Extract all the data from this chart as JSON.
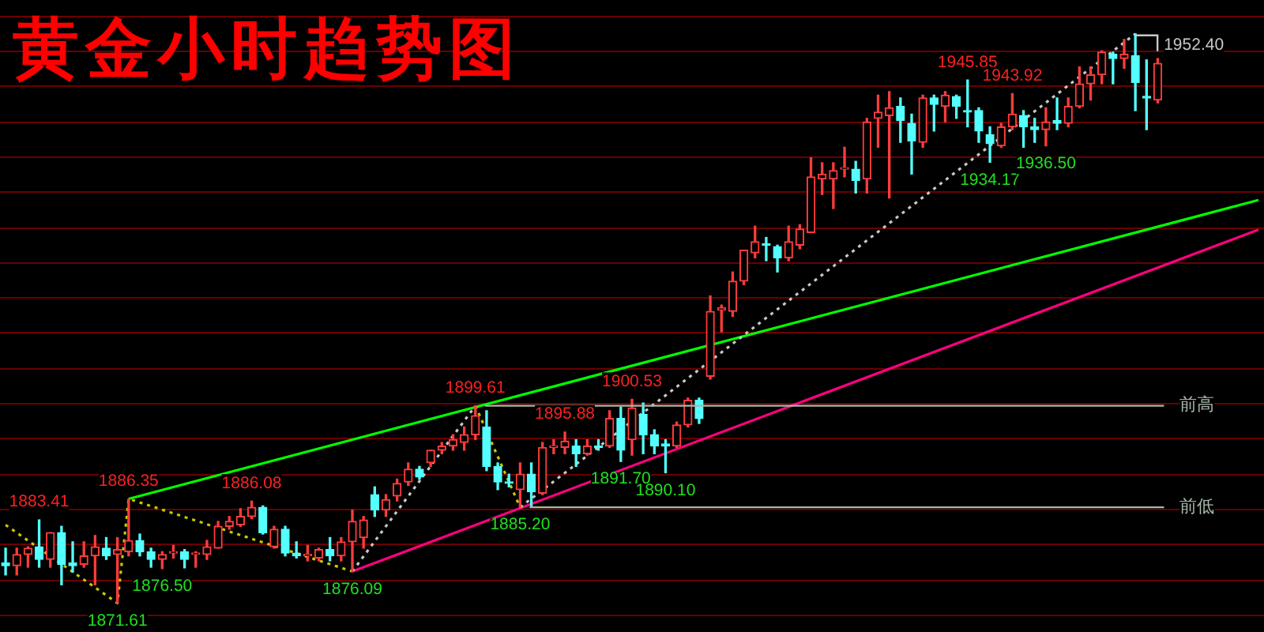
{
  "chart_data": {
    "type": "candlestick",
    "title": "黄金小时趋势图",
    "categories": [
      null,
      null,
      null,
      null,
      null,
      null,
      null,
      null,
      null,
      null,
      null,
      null,
      null,
      null,
      null,
      null,
      null,
      null,
      null,
      null,
      null,
      null,
      null,
      null,
      null,
      null,
      null,
      null,
      null,
      null,
      null,
      null,
      null,
      null,
      null,
      null,
      null,
      null,
      null,
      null,
      null,
      null,
      null,
      null,
      null,
      null,
      null,
      null,
      null,
      null,
      null,
      null,
      null,
      null,
      null,
      null,
      null,
      null,
      null,
      null,
      null,
      null,
      null,
      null,
      null,
      null,
      null,
      null,
      null,
      null,
      null,
      null,
      null,
      null,
      null,
      null,
      null,
      null,
      null,
      null,
      null,
      null,
      null,
      null,
      null,
      null,
      null,
      null,
      null,
      null,
      null,
      null,
      null,
      null,
      null,
      null,
      null,
      null,
      null,
      null,
      null,
      null,
      null,
      null,
      null,
      null,
      null,
      null,
      null,
      null,
      null,
      null,
      null
    ],
    "ohlc": [
      [
        1877.3,
        1879.4,
        1875.6,
        1876.9
      ],
      [
        1876.9,
        1879.4,
        1875.6,
        1878.5
      ],
      [
        1878.5,
        1879.6,
        1876.7,
        1879.4
      ],
      [
        1879.6,
        1883.41,
        1876.7,
        1877.8
      ],
      [
        1877.8,
        1881.6,
        1876.7,
        1881.6
      ],
      [
        1881.6,
        1882.5,
        1874.2,
        1877.1
      ],
      [
        1877.3,
        1880.3,
        1876.0,
        1876.9
      ],
      [
        1877.1,
        1880.3,
        1876.7,
        1878.3
      ],
      [
        1878.3,
        1881.2,
        1874.2,
        1879.6
      ],
      [
        1879.4,
        1880.9,
        1877.8,
        1878.3
      ],
      [
        1878.5,
        1880.9,
        1871.61,
        1879.2
      ],
      [
        1878.9,
        1886.35,
        1878.3,
        1880.5
      ],
      [
        1880.5,
        1881.4,
        1878.3,
        1878.9
      ],
      [
        1878.9,
        1879.4,
        1876.7,
        1877.8
      ],
      [
        1877.8,
        1878.9,
        1876.5,
        1878.5
      ],
      [
        1878.7,
        1879.8,
        1878.0,
        1878.9
      ],
      [
        1878.9,
        1879.2,
        1876.6,
        1877.8
      ],
      [
        1878.5,
        1878.9,
        1876.7,
        1878.7
      ],
      [
        1878.5,
        1880.5,
        1877.8,
        1879.6
      ],
      [
        1879.4,
        1883.2,
        1879.4,
        1882.5
      ],
      [
        1882.5,
        1883.9,
        1882.1,
        1883.2
      ],
      [
        1882.7,
        1885.0,
        1882.5,
        1883.9
      ],
      [
        1883.9,
        1886.08,
        1883.6,
        1885.2
      ],
      [
        1885.2,
        1885.4,
        1881.4,
        1881.6
      ],
      [
        1879.6,
        1882.5,
        1879.4,
        1882.1
      ],
      [
        1882.1,
        1882.5,
        1878.3,
        1878.7
      ],
      [
        1878.7,
        1880.3,
        1878.0,
        1878.3
      ],
      [
        1878.3,
        1879.8,
        1877.6,
        1878.5
      ],
      [
        1878.0,
        1879.4,
        1877.6,
        1879.2
      ],
      [
        1879.2,
        1880.9,
        1877.6,
        1878.3
      ],
      [
        1878.3,
        1880.9,
        1877.6,
        1880.3
      ],
      [
        1880.3,
        1884.8,
        1876.09,
        1883.2
      ],
      [
        1880.9,
        1883.9,
        1879.4,
        1883.4
      ],
      [
        1887.0,
        1888.1,
        1883.9,
        1884.8
      ],
      [
        1884.8,
        1887.0,
        1883.9,
        1886.3
      ],
      [
        1886.8,
        1889.2,
        1886.1,
        1888.6
      ],
      [
        1888.8,
        1891.5,
        1888.3,
        1890.6
      ],
      [
        1890.6,
        1891.0,
        1889.2,
        1889.5
      ],
      [
        1891.5,
        1893.3,
        1891.0,
        1893.3
      ],
      [
        1893.3,
        1894.4,
        1892.8,
        1893.9
      ],
      [
        1893.9,
        1895.5,
        1893.3,
        1894.8
      ],
      [
        1894.4,
        1896.6,
        1893.3,
        1895.5
      ],
      [
        1895.5,
        1899.61,
        1894.8,
        1898.2
      ],
      [
        1896.6,
        1898.9,
        1890.4,
        1891.0
      ],
      [
        1891.0,
        1891.5,
        1887.7,
        1888.8
      ],
      [
        1888.8,
        1889.9,
        1888.1,
        1888.6
      ],
      [
        1887.7,
        1891.5,
        1885.2,
        1889.9
      ],
      [
        1889.9,
        1891.5,
        1885.4,
        1887.4
      ],
      [
        1887.2,
        1894.4,
        1887.0,
        1893.7
      ],
      [
        1893.7,
        1894.8,
        1892.8,
        1893.9
      ],
      [
        1893.7,
        1895.88,
        1892.8,
        1894.6
      ],
      [
        1893.9,
        1894.8,
        1891.0,
        1892.8
      ],
      [
        1892.8,
        1894.8,
        1892.6,
        1893.9
      ],
      [
        1893.9,
        1894.8,
        1893.3,
        1893.7
      ],
      [
        1893.9,
        1898.9,
        1893.7,
        1897.8
      ],
      [
        1897.8,
        1899.4,
        1891.7,
        1893.3
      ],
      [
        1894.8,
        1900.53,
        1892.6,
        1899.3
      ],
      [
        1898.4,
        1900.0,
        1892.8,
        1895.5
      ],
      [
        1895.5,
        1896.2,
        1892.8,
        1893.9
      ],
      [
        1894.2,
        1894.8,
        1890.1,
        1893.9
      ],
      [
        1893.9,
        1897.3,
        1893.7,
        1896.9
      ],
      [
        1896.9,
        1900.7,
        1896.6,
        1900.4
      ],
      [
        1900.4,
        1900.7,
        1897.1,
        1897.8
      ],
      [
        1903.8,
        1915.2,
        1903.4,
        1913.0
      ],
      [
        1913.2,
        1913.9,
        1910.1,
        1913.5
      ],
      [
        1913.0,
        1918.6,
        1912.3,
        1917.3
      ],
      [
        1917.3,
        1921.7,
        1916.8,
        1921.7
      ],
      [
        1921.3,
        1925.1,
        1920.6,
        1922.9
      ],
      [
        1922.6,
        1923.5,
        1920.2,
        1922.4
      ],
      [
        1922.2,
        1922.4,
        1918.6,
        1920.6
      ],
      [
        1920.6,
        1925.1,
        1920.2,
        1922.9
      ],
      [
        1922.4,
        1925.3,
        1921.9,
        1924.7
      ],
      [
        1924.2,
        1934.8,
        1924.2,
        1932.1
      ],
      [
        1931.8,
        1934.1,
        1929.6,
        1932.5
      ],
      [
        1931.8,
        1934.1,
        1927.6,
        1933.0
      ],
      [
        1933.2,
        1936.3,
        1932.1,
        1933.4
      ],
      [
        1933.2,
        1934.3,
        1929.8,
        1931.6
      ],
      [
        1931.8,
        1940.4,
        1929.8,
        1939.9
      ],
      [
        1940.4,
        1943.7,
        1936.3,
        1941.3
      ],
      [
        1940.8,
        1944.2,
        1929.1,
        1941.9
      ],
      [
        1942.1,
        1943.3,
        1937.0,
        1940.1
      ],
      [
        1939.7,
        1941.0,
        1932.5,
        1937.2
      ],
      [
        1937.0,
        1943.7,
        1936.3,
        1943.3
      ],
      [
        1943.3,
        1943.7,
        1938.6,
        1942.4
      ],
      [
        1942.1,
        1944.2,
        1939.9,
        1943.7
      ],
      [
        1943.5,
        1943.7,
        1940.4,
        1942.1
      ],
      [
        1941.5,
        1945.85,
        1939.2,
        1941.3
      ],
      [
        1941.5,
        1941.9,
        1937.0,
        1938.6
      ],
      [
        1938.1,
        1939.2,
        1934.17,
        1936.8
      ],
      [
        1936.5,
        1939.7,
        1936.3,
        1939.2
      ],
      [
        1939.2,
        1943.92,
        1938.8,
        1941.0
      ],
      [
        1940.8,
        1941.5,
        1936.3,
        1939.2
      ],
      [
        1939.2,
        1940.4,
        1937.0,
        1938.8
      ],
      [
        1938.8,
        1941.9,
        1936.5,
        1939.9
      ],
      [
        1940.1,
        1943.3,
        1938.8,
        1939.7
      ],
      [
        1939.7,
        1943.3,
        1939.2,
        1942.1
      ],
      [
        1942.1,
        1947.7,
        1941.9,
        1945.3
      ],
      [
        1945.3,
        1947.7,
        1943.0,
        1946.6
      ],
      [
        1946.6,
        1950.0,
        1945.3,
        1949.8
      ],
      [
        1949.5,
        1949.8,
        1945.3,
        1948.9
      ],
      [
        1948.9,
        1951.6,
        1947.5,
        1949.5
      ],
      [
        1949.3,
        1952.4,
        1941.5,
        1945.5
      ],
      [
        1943.5,
        1948.7,
        1938.8,
        1943.3
      ],
      [
        1943.0,
        1948.9,
        1942.6,
        1948.2
      ],
      null,
      null,
      null,
      null,
      null,
      null,
      null,
      null,
      null
    ],
    "series": [
      {
        "type": "line",
        "color": "#c8c800",
        "line_style": "dotted",
        "values": [
          1882.7,
          null,
          null,
          null,
          null,
          null,
          null,
          null,
          null,
          null,
          1871.6,
          1886.4,
          null,
          null,
          null,
          null,
          null,
          null,
          null,
          null,
          null,
          null,
          null,
          null,
          null,
          null,
          null,
          null,
          null,
          null,
          null,
          1876.1,
          null,
          null,
          null,
          null,
          null,
          null,
          null,
          null,
          null,
          null,
          null,
          null,
          null,
          null,
          null,
          null,
          null,
          null,
          null,
          null,
          null,
          null,
          null,
          null,
          null,
          null,
          null,
          null,
          null,
          null,
          null,
          null,
          null,
          null,
          null,
          null,
          null,
          null,
          null,
          null,
          null,
          null,
          null,
          null,
          null,
          null,
          null,
          null,
          null,
          null,
          null,
          null,
          null,
          null,
          null,
          null,
          null,
          null,
          null,
          null,
          null,
          null,
          null,
          null,
          null,
          null,
          null,
          null,
          null,
          null,
          null,
          null,
          null,
          null,
          null,
          null,
          null,
          null,
          null,
          null,
          null
        ]
      },
      {
        "type": "line",
        "color": "#c8c8c8",
        "line_style": "dotted",
        "values": [
          null,
          null,
          null,
          null,
          null,
          null,
          null,
          null,
          null,
          null,
          null,
          null,
          null,
          null,
          null,
          null,
          null,
          null,
          null,
          null,
          null,
          null,
          null,
          null,
          null,
          null,
          null,
          null,
          null,
          null,
          null,
          1876.1,
          null,
          null,
          null,
          null,
          null,
          null,
          null,
          null,
          null,
          null,
          1899.6,
          null,
          null,
          null,
          null,
          null,
          null,
          null,
          null,
          null,
          null,
          null,
          null,
          null,
          null,
          null,
          null,
          null,
          null,
          null,
          null,
          null,
          null,
          null,
          null,
          null,
          null,
          null,
          null,
          null,
          null,
          null,
          null,
          null,
          null,
          null,
          null,
          null,
          null,
          null,
          null,
          null,
          null,
          null,
          null,
          null,
          null,
          null,
          null,
          null,
          null,
          null,
          null,
          null,
          null,
          null,
          null,
          null,
          null,
          null,
          null,
          null,
          null,
          null,
          null,
          null,
          null,
          null,
          null,
          null,
          null
        ]
      },
      {
        "type": "line",
        "color": "#c8c800",
        "line_style": "dotted",
        "values": [
          null,
          null,
          null,
          null,
          null,
          null,
          null,
          null,
          null,
          null,
          null,
          null,
          null,
          null,
          null,
          null,
          null,
          null,
          null,
          null,
          null,
          null,
          null,
          null,
          null,
          null,
          null,
          null,
          null,
          null,
          null,
          null,
          null,
          null,
          null,
          null,
          null,
          null,
          null,
          null,
          null,
          null,
          1899.6,
          null,
          null,
          null,
          1885.2,
          null,
          null,
          null,
          null,
          null,
          null,
          null,
          null,
          null,
          null,
          null,
          null,
          null,
          null,
          null,
          null,
          null,
          null,
          null,
          null,
          null,
          null,
          null,
          null,
          null,
          null,
          null,
          null,
          null,
          null,
          null,
          null,
          null,
          null,
          null,
          null,
          null,
          null,
          null,
          null,
          null,
          null,
          null,
          null,
          null,
          null,
          null,
          null,
          null,
          null,
          null,
          null,
          null,
          null,
          null,
          null,
          null,
          null,
          null,
          null,
          null,
          null,
          null,
          null,
          null,
          null
        ]
      },
      {
        "type": "line",
        "color": "#c8c8c8",
        "line_style": "dotted",
        "values": [
          null,
          null,
          null,
          null,
          null,
          null,
          null,
          null,
          null,
          null,
          null,
          null,
          null,
          null,
          null,
          null,
          null,
          null,
          null,
          null,
          null,
          null,
          null,
          null,
          null,
          null,
          null,
          null,
          null,
          null,
          null,
          null,
          null,
          null,
          null,
          null,
          null,
          null,
          null,
          null,
          null,
          null,
          null,
          null,
          null,
          null,
          1885.2,
          null,
          null,
          null,
          null,
          null,
          null,
          null,
          null,
          null,
          null,
          null,
          null,
          null,
          null,
          null,
          null,
          null,
          null,
          null,
          null,
          null,
          null,
          null,
          null,
          null,
          null,
          null,
          null,
          null,
          null,
          null,
          null,
          null,
          null,
          null,
          null,
          null,
          null,
          null,
          null,
          null,
          null,
          null,
          null,
          null,
          null,
          null,
          null,
          null,
          null,
          null,
          null,
          null,
          null,
          1952.4,
          null,
          null,
          null,
          null,
          null,
          null,
          null,
          null,
          null,
          null,
          null
        ]
      },
      {
        "type": "line",
        "color": "#00ff00",
        "line_style": "solid",
        "values": [
          null,
          null,
          null,
          null,
          null,
          null,
          null,
          null,
          null,
          null,
          null,
          1886.4,
          null,
          null,
          null,
          null,
          null,
          null,
          null,
          null,
          null,
          null,
          null,
          null,
          null,
          null,
          null,
          null,
          null,
          null,
          null,
          null,
          null,
          null,
          null,
          null,
          null,
          null,
          null,
          null,
          null,
          null,
          null,
          null,
          null,
          null,
          null,
          null,
          null,
          null,
          null,
          null,
          null,
          null,
          null,
          null,
          null,
          null,
          null,
          null,
          null,
          null,
          null,
          null,
          null,
          null,
          null,
          null,
          null,
          null,
          null,
          null,
          null,
          null,
          null,
          null,
          null,
          null,
          null,
          null,
          null,
          null,
          null,
          null,
          null,
          null,
          null,
          null,
          null,
          null,
          null,
          null,
          null,
          null,
          null,
          null,
          null,
          null,
          null,
          null,
          null,
          null,
          null,
          null,
          null,
          null,
          null,
          null,
          null,
          null,
          null,
          null,
          1928.8
        ]
      },
      {
        "type": "line",
        "color": "#ff0080",
        "line_style": "solid",
        "values": [
          null,
          null,
          null,
          null,
          null,
          null,
          null,
          null,
          null,
          null,
          null,
          null,
          null,
          null,
          null,
          null,
          null,
          null,
          null,
          null,
          null,
          null,
          null,
          null,
          null,
          null,
          null,
          null,
          null,
          null,
          null,
          1876.1,
          null,
          null,
          null,
          null,
          null,
          null,
          null,
          null,
          null,
          null,
          null,
          null,
          null,
          null,
          null,
          null,
          null,
          null,
          null,
          null,
          null,
          null,
          null,
          null,
          null,
          null,
          null,
          null,
          null,
          null,
          null,
          null,
          null,
          null,
          null,
          null,
          null,
          null,
          null,
          null,
          null,
          null,
          null,
          null,
          null,
          null,
          null,
          null,
          null,
          null,
          null,
          null,
          null,
          null,
          null,
          null,
          null,
          null,
          null,
          null,
          null,
          null,
          null,
          null,
          null,
          null,
          null,
          null,
          null,
          null,
          null,
          null,
          null,
          null,
          null,
          null,
          null,
          null,
          null,
          null,
          1924.6
        ]
      }
    ],
    "ref_lines": [
      {
        "axis": "y",
        "value": 1899.61,
        "label": "前高",
        "color": "#a8b8a8"
      },
      {
        "axis": "y",
        "value": 1885.2,
        "label": "前低",
        "color": "#a8b8a8"
      }
    ],
    "annotations": [
      {
        "text": "1883.41",
        "y": 1883.41
      },
      {
        "text": "1886.35",
        "y": 1886.35
      },
      {
        "text": "1886.08",
        "y": 1886.08
      },
      {
        "text": "1876.50",
        "y": 1876.5
      },
      {
        "text": "1871.61",
        "y": 1871.61
      },
      {
        "text": "1876.09",
        "y": 1876.09
      },
      {
        "text": "1899.61",
        "y": 1899.61
      },
      {
        "text": "1895.88",
        "y": 1895.88
      },
      {
        "text": "1900.53",
        "y": 1900.53
      },
      {
        "text": "1891.70",
        "y": 1891.7
      },
      {
        "text": "1890.10",
        "y": 1890.1
      },
      {
        "text": "1885.20",
        "y": 1885.2
      },
      {
        "text": "1945.85",
        "y": 1945.85
      },
      {
        "text": "1943.92",
        "y": 1943.92
      },
      {
        "text": "1934.17",
        "y": 1934.17
      },
      {
        "text": "1936.50",
        "y": 1936.5
      },
      "1952.40"
    ],
    "ylim": [
      1867.5,
      1957.2
    ],
    "yticks": [
      {
        "value": 1870,
        "label": null
      },
      {
        "value": 1875,
        "label": null
      },
      {
        "value": 1880,
        "label": null
      },
      {
        "value": 1885,
        "label": null
      },
      {
        "value": 1890,
        "label": null
      },
      {
        "value": 1895,
        "label": null
      },
      {
        "value": 1900,
        "label": null
      },
      {
        "value": 1905,
        "label": null
      },
      {
        "value": 1910,
        "label": null
      },
      {
        "value": 1915,
        "label": null
      },
      {
        "value": 1920,
        "label": null
      },
      {
        "value": 1925,
        "label": null
      },
      {
        "value": 1930,
        "label": null
      },
      {
        "value": 1935,
        "label": null
      },
      {
        "value": 1940,
        "label": null
      },
      {
        "value": 1945,
        "label": null
      },
      {
        "value": 1950,
        "label": null
      },
      {
        "value": 1955,
        "label": null
      }
    ],
    "grid": "y"
  }
}
